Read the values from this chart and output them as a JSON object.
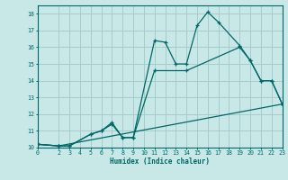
{
  "bg_color": "#c8e8e8",
  "grid_color": "#a8cccc",
  "line_color": "#006666",
  "xlabel": "Humidex (Indice chaleur)",
  "xlim": [
    0,
    23
  ],
  "ylim": [
    10,
    18.5
  ],
  "xticks": [
    0,
    2,
    3,
    4,
    5,
    6,
    7,
    8,
    9,
    10,
    11,
    12,
    13,
    14,
    15,
    16,
    17,
    18,
    19,
    20,
    21,
    22,
    23
  ],
  "yticks": [
    10,
    11,
    12,
    13,
    14,
    15,
    16,
    17,
    18
  ],
  "line1_x": [
    0,
    2,
    3,
    5,
    6,
    7,
    8,
    9,
    11,
    12,
    13,
    14,
    15,
    16,
    17,
    19,
    20,
    21,
    22,
    23
  ],
  "line1_y": [
    10.2,
    10.1,
    10.1,
    10.8,
    11.0,
    11.5,
    10.6,
    10.6,
    16.4,
    16.3,
    15.0,
    15.0,
    17.3,
    18.1,
    17.5,
    16.1,
    15.2,
    14.0,
    14.0,
    12.6
  ],
  "line2_x": [
    0,
    2,
    3,
    5,
    6,
    7,
    8,
    9,
    11,
    14,
    19,
    20,
    21,
    22,
    23
  ],
  "line2_y": [
    10.2,
    10.1,
    10.1,
    10.8,
    11.0,
    11.4,
    10.6,
    10.6,
    14.6,
    14.6,
    16.0,
    15.2,
    14.0,
    14.0,
    12.6
  ],
  "line3_x": [
    0,
    2,
    23
  ],
  "line3_y": [
    10.2,
    10.1,
    12.6
  ]
}
